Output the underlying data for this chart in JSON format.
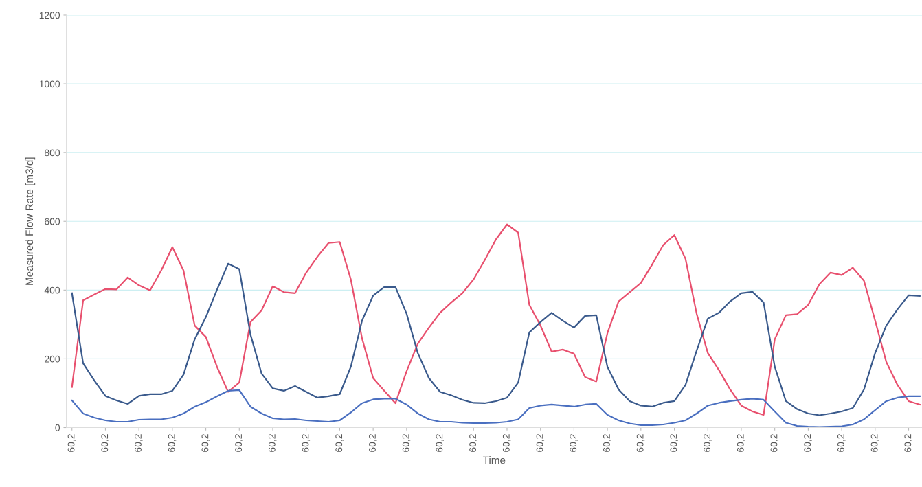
{
  "chart_data": {
    "type": "line",
    "xlabel": "Time",
    "ylabel": "Measured Flow Rate [m3/d]",
    "categories": [
      "60,2",
      null,
      null,
      "60,2",
      null,
      null,
      "60,2",
      null,
      null,
      "60,2",
      null,
      null,
      "60,2",
      null,
      null,
      "60,2",
      null,
      null,
      "60,2",
      null,
      null,
      "60,2",
      null,
      null,
      "60,2",
      null,
      null,
      "60,2",
      null,
      null,
      "60,2",
      null,
      null,
      "60,2",
      null,
      null,
      "60,2",
      null,
      null,
      "60,2",
      null,
      null,
      "60,2",
      null,
      null,
      "60,2",
      null,
      null,
      "60,2",
      null,
      null,
      "60,2",
      null,
      null,
      "60,2",
      null,
      null,
      "60,2",
      null,
      null,
      "60,2",
      null,
      null,
      "60,2",
      null,
      null,
      "60,2",
      null,
      null,
      "60,2",
      null,
      null,
      "60,2",
      null,
      null,
      "60,2",
      null
    ],
    "series": [
      {
        "color": "#e8506e",
        "values": [
          118,
          370,
          387,
          403,
          402,
          437,
          414,
          399,
          457,
          525,
          457,
          297,
          264,
          177,
          104,
          131,
          307,
          341,
          411,
          394,
          391,
          451,
          497,
          537,
          540,
          431,
          260,
          144,
          107,
          71,
          164,
          244,
          291,
          334,
          364,
          391,
          431,
          487,
          547,
          591,
          567,
          357,
          297,
          221,
          227,
          215,
          147,
          134,
          275,
          367,
          394,
          421,
          474,
          531,
          560,
          491,
          331,
          217,
          167,
          111,
          64,
          47,
          37,
          257,
          327,
          330,
          357,
          417,
          451,
          444,
          465,
          427,
          311,
          191,
          124,
          77,
          67
        ]
      },
      {
        "color": "#3a5a8c",
        "values": [
          391,
          187,
          137,
          92,
          79,
          69,
          92,
          97,
          97,
          107,
          154,
          257,
          321,
          401,
          477,
          461,
          271,
          157,
          114,
          107,
          121,
          104,
          87,
          91,
          97,
          177,
          311,
          384,
          409,
          409,
          331,
          217,
          144,
          104,
          94,
          81,
          72,
          71,
          77,
          87,
          131,
          277,
          307,
          334,
          311,
          291,
          325,
          327,
          177,
          111,
          77,
          64,
          61,
          72,
          77,
          124,
          224,
          317,
          334,
          367,
          391,
          395,
          364,
          177,
          77,
          54,
          41,
          36,
          41,
          47,
          57,
          111,
          217,
          297,
          344,
          385,
          383
        ]
      },
      {
        "color": "#4a6fc0",
        "values": [
          79,
          41,
          29,
          21,
          17,
          17,
          23,
          24,
          24,
          29,
          41,
          61,
          74,
          91,
          107,
          109,
          61,
          41,
          27,
          24,
          25,
          21,
          19,
          17,
          21,
          44,
          71,
          82,
          84,
          84,
          67,
          41,
          24,
          17,
          17,
          14,
          13,
          13,
          14,
          17,
          24,
          57,
          64,
          67,
          64,
          61,
          67,
          69,
          37,
          21,
          12,
          7,
          7,
          9,
          14,
          21,
          41,
          64,
          72,
          77,
          81,
          84,
          81,
          47,
          14,
          5,
          3,
          2,
          3,
          4,
          9,
          24,
          51,
          77,
          87,
          91,
          91
        ]
      }
    ],
    "ylim": [
      0,
      1200
    ],
    "yticks": [
      0,
      200,
      400,
      600,
      800,
      1000,
      1200
    ],
    "grid": "y",
    "marker": "none",
    "line_style": "solid"
  }
}
